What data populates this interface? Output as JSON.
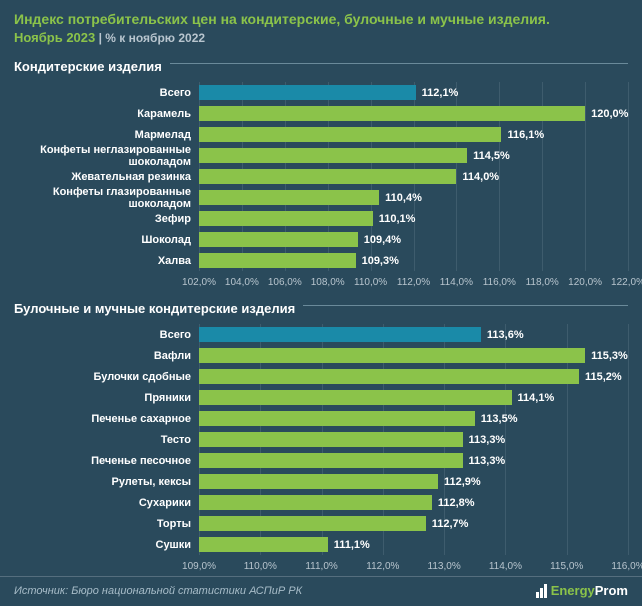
{
  "header": {
    "title": "Индекс потребительских цен на кондитерские, булочные и мучные изделия.",
    "subtitle_main": "Ноябрь 2023",
    "subtitle_sep": " | ",
    "subtitle_secondary": "% к ноябрю 2022"
  },
  "colors": {
    "background": "#2a4a5c",
    "accent": "#8bc34a",
    "total_bar": "#1a8aa8",
    "item_bar": "#8bc34a",
    "text_white": "#ffffff",
    "text_muted": "#b8c5ce"
  },
  "chart1": {
    "section_title": "Кондитерские изделия",
    "xmin": 102.0,
    "xmax": 122.0,
    "ticks": [
      102.0,
      104.0,
      106.0,
      108.0,
      110.0,
      112.0,
      114.0,
      116.0,
      118.0,
      120.0,
      122.0
    ],
    "tick_labels": [
      "102,0%",
      "104,0%",
      "106,0%",
      "108,0%",
      "110,0%",
      "112,0%",
      "114,0%",
      "116,0%",
      "118,0%",
      "120,0%",
      "122,0%"
    ],
    "items": [
      {
        "label": "Всего",
        "value": 112.1,
        "value_label": "112,1%",
        "is_total": true
      },
      {
        "label": "Карамель",
        "value": 120.0,
        "value_label": "120,0%",
        "is_total": false
      },
      {
        "label": "Мармелад",
        "value": 116.1,
        "value_label": "116,1%",
        "is_total": false
      },
      {
        "label": "Конфеты неглазированные шоколадом",
        "value": 114.5,
        "value_label": "114,5%",
        "is_total": false
      },
      {
        "label": "Жевательная резинка",
        "value": 114.0,
        "value_label": "114,0%",
        "is_total": false
      },
      {
        "label": "Конфеты глазированные шоколадом",
        "value": 110.4,
        "value_label": "110,4%",
        "is_total": false
      },
      {
        "label": "Зефир",
        "value": 110.1,
        "value_label": "110,1%",
        "is_total": false
      },
      {
        "label": "Шоколад",
        "value": 109.4,
        "value_label": "109,4%",
        "is_total": false
      },
      {
        "label": "Халва",
        "value": 109.3,
        "value_label": "109,3%",
        "is_total": false
      }
    ]
  },
  "chart2": {
    "section_title": "Булочные и мучные кондитерские изделия",
    "xmin": 109.0,
    "xmax": 116.0,
    "ticks": [
      109.0,
      110.0,
      111.0,
      112.0,
      113.0,
      114.0,
      115.0,
      116.0
    ],
    "tick_labels": [
      "109,0%",
      "110,0%",
      "111,0%",
      "112,0%",
      "113,0%",
      "114,0%",
      "115,0%",
      "116,0%"
    ],
    "items": [
      {
        "label": "Всего",
        "value": 113.6,
        "value_label": "113,6%",
        "is_total": true
      },
      {
        "label": "Вафли",
        "value": 115.3,
        "value_label": "115,3%",
        "is_total": false
      },
      {
        "label": "Булочки сдобные",
        "value": 115.2,
        "value_label": "115,2%",
        "is_total": false
      },
      {
        "label": "Пряники",
        "value": 114.1,
        "value_label": "114,1%",
        "is_total": false
      },
      {
        "label": "Печенье сахарное",
        "value": 113.5,
        "value_label": "113,5%",
        "is_total": false
      },
      {
        "label": "Тесто",
        "value": 113.3,
        "value_label": "113,3%",
        "is_total": false
      },
      {
        "label": "Печенье песочное",
        "value": 113.3,
        "value_label": "113,3%",
        "is_total": false
      },
      {
        "label": "Рулеты, кексы",
        "value": 112.9,
        "value_label": "112,9%",
        "is_total": false
      },
      {
        "label": "Сухарики",
        "value": 112.8,
        "value_label": "112,8%",
        "is_total": false
      },
      {
        "label": "Торты",
        "value": 112.7,
        "value_label": "112,7%",
        "is_total": false
      },
      {
        "label": "Сушки",
        "value": 111.1,
        "value_label": "111,1%",
        "is_total": false
      }
    ]
  },
  "footer": {
    "source": "Источник: Бюро национальной статистики АСПиР РК",
    "logo_text_1": "Energy",
    "logo_text_2": "Prom"
  }
}
